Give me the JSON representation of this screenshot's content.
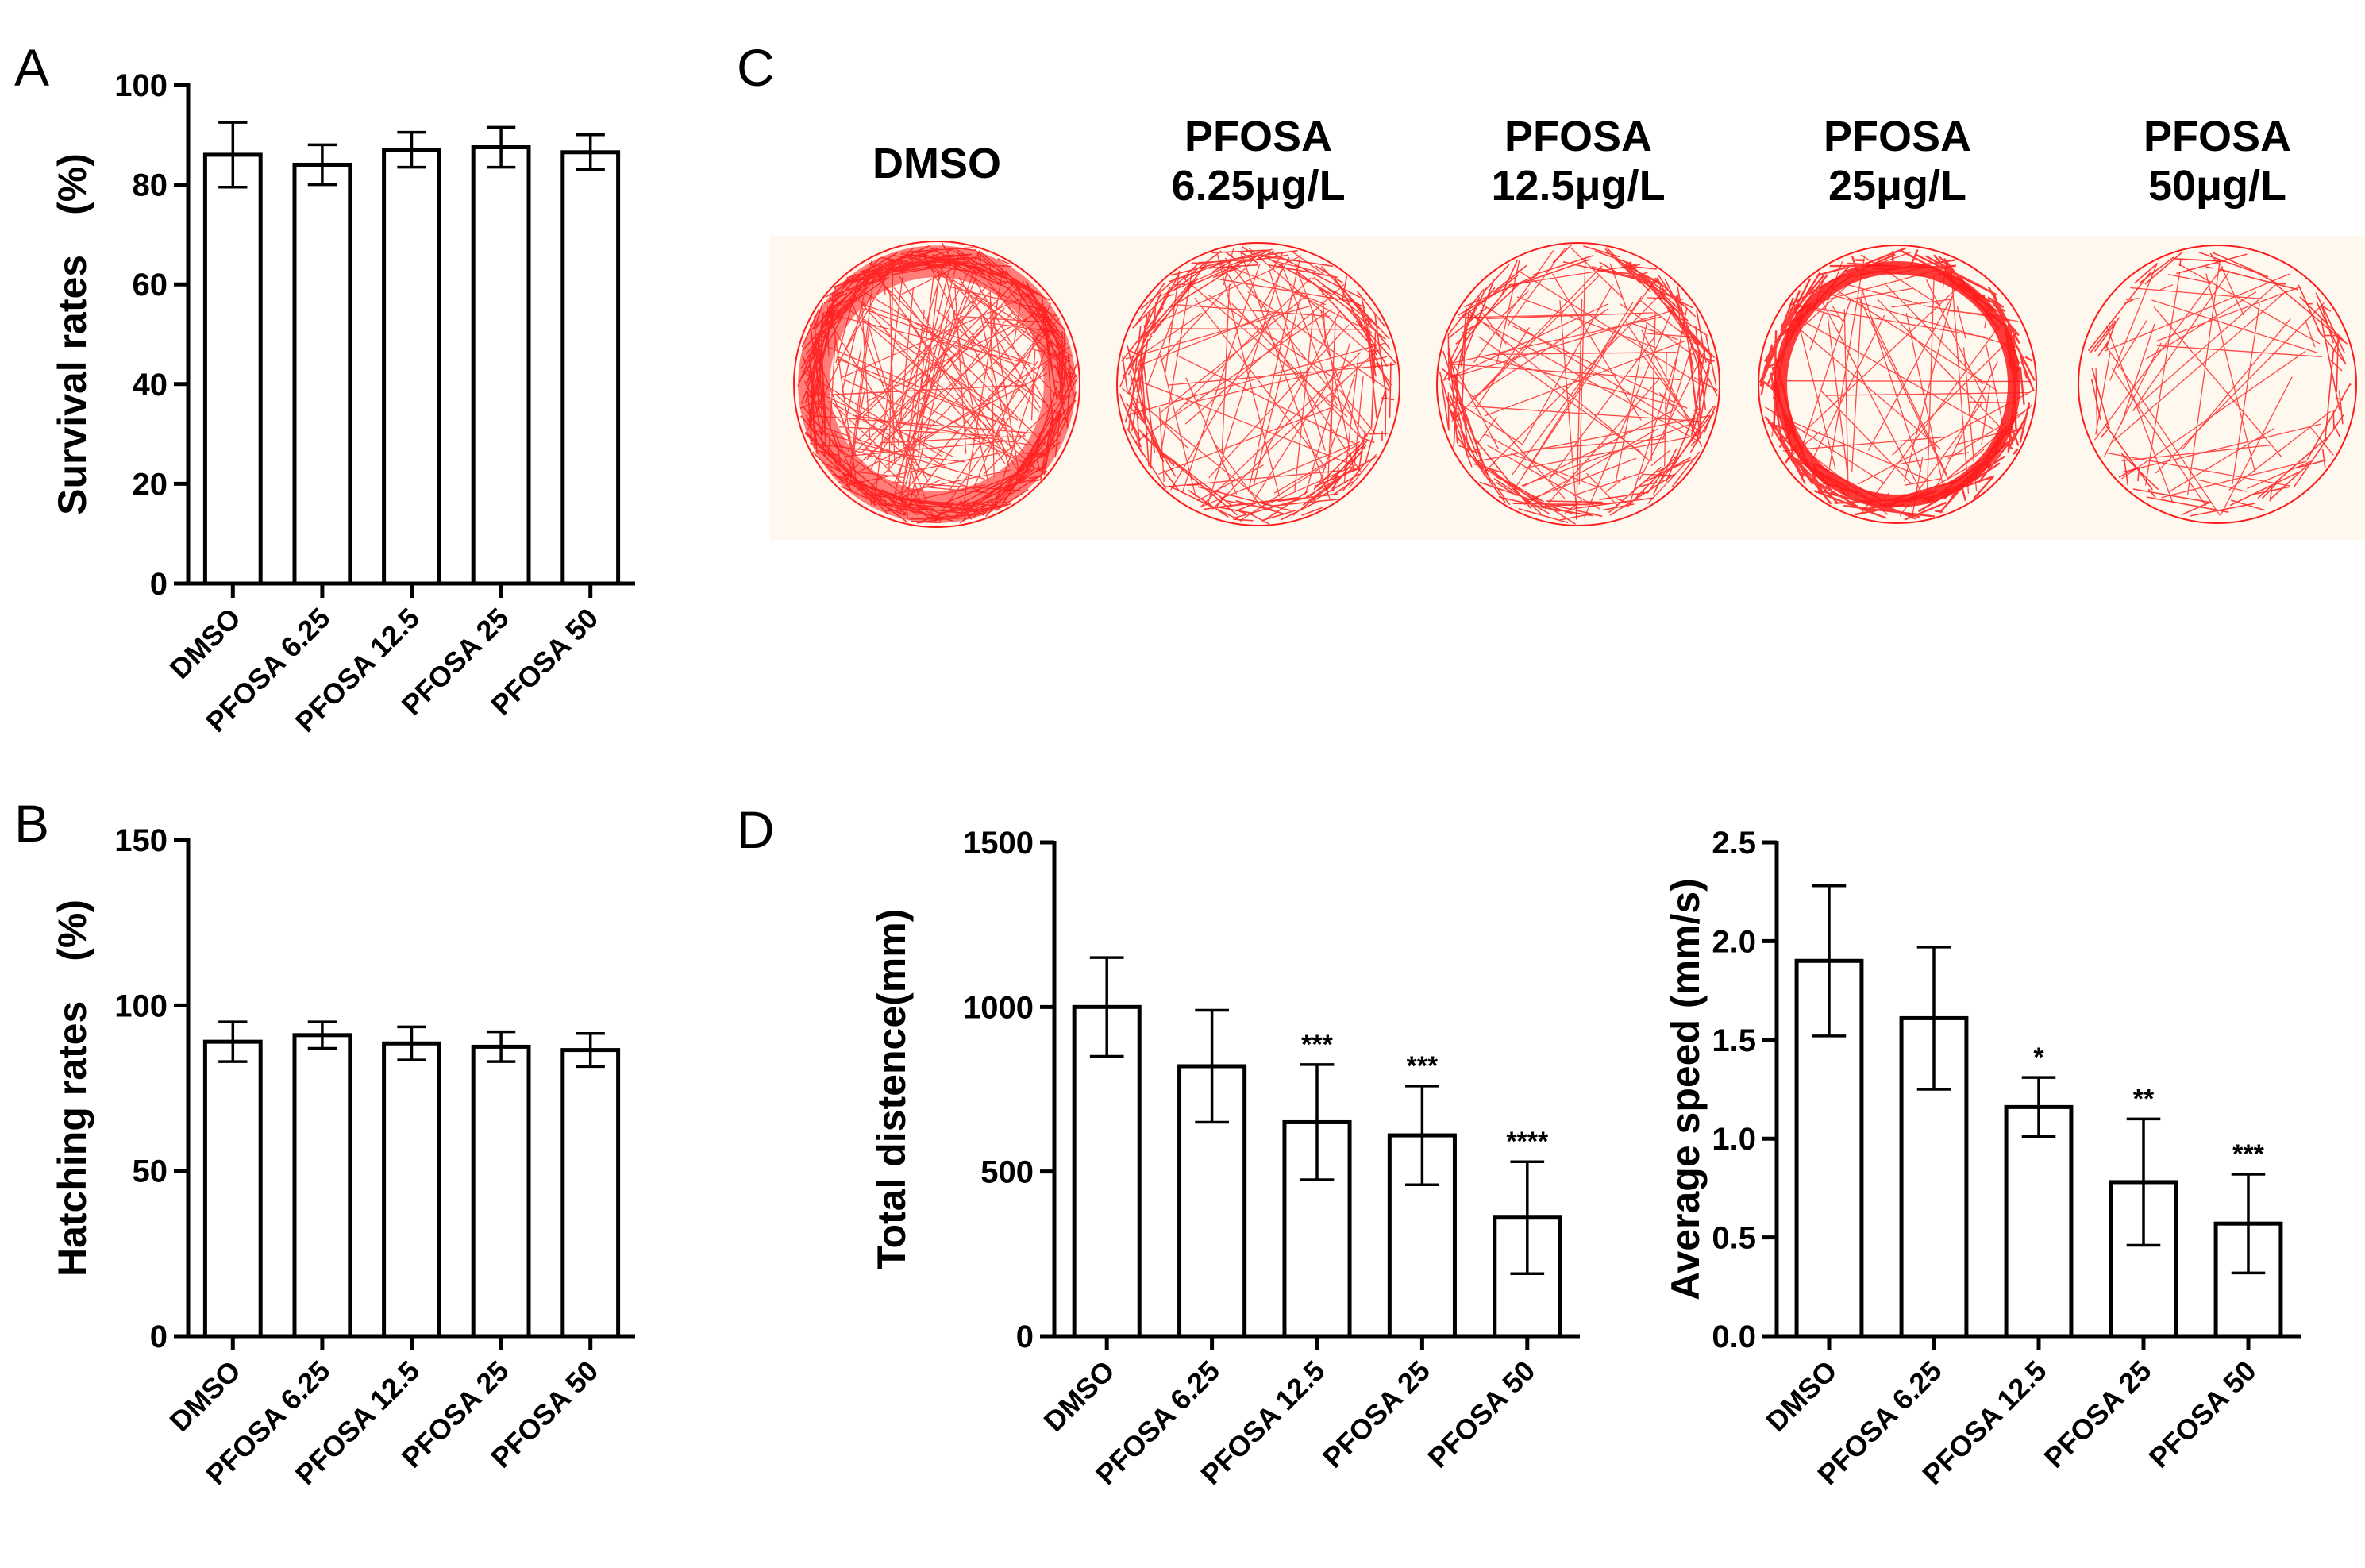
{
  "panels": {
    "A": "A",
    "B": "B",
    "C": "C",
    "D": "D"
  },
  "tracks": {
    "labels": [
      [
        "DMSO"
      ],
      [
        "PFOSA",
        "6.25μg/L"
      ],
      [
        "PFOSA",
        "12.5μg/L"
      ],
      [
        "PFOSA",
        "25μg/L"
      ],
      [
        "PFOSA",
        "50μg/L"
      ]
    ],
    "trace_color": "#ff1a1a",
    "background_color": "#fff8ee",
    "density": [
      1.0,
      0.55,
      0.55,
      0.5,
      0.25
    ]
  },
  "chart_data": [
    {
      "id": "survival",
      "type": "bar",
      "categories": [
        "DMSO",
        "PFOSA 6.25",
        "PFOSA 12.5",
        "PFOSA 25",
        "PFOSA 50"
      ],
      "values": [
        86,
        84,
        87,
        87.5,
        86.5
      ],
      "errors": [
        6.5,
        4,
        3.5,
        4,
        3.5
      ],
      "ylabel": "Survival rates　(%)",
      "ylim": [
        0,
        100
      ],
      "yticks": [
        0,
        20,
        40,
        60,
        80,
        100
      ],
      "yticklabels": [
        "0",
        "20",
        "40",
        "60",
        "80",
        "100"
      ],
      "annotations": [
        "",
        "",
        "",
        "",
        ""
      ]
    },
    {
      "id": "hatching",
      "type": "bar",
      "categories": [
        "DMSO",
        "PFOSA 6.25",
        "PFOSA 12.5",
        "PFOSA 25",
        "PFOSA 50"
      ],
      "values": [
        89,
        91,
        88.5,
        87.5,
        86.5
      ],
      "errors": [
        6,
        4,
        5,
        4.5,
        5
      ],
      "ylabel": "Hatching rates　(%)",
      "ylim": [
        0,
        150
      ],
      "yticks": [
        0,
        50,
        100,
        150
      ],
      "yticklabels": [
        "0",
        "50",
        "100",
        "150"
      ],
      "annotations": [
        "",
        "",
        "",
        "",
        ""
      ]
    },
    {
      "id": "distance",
      "type": "bar",
      "categories": [
        "DMSO",
        "PFOSA 6.25",
        "PFOSA 12.5",
        "PFOSA 25",
        "PFOSA 50"
      ],
      "values": [
        1000,
        820,
        650,
        610,
        360
      ],
      "errors": [
        150,
        170,
        175,
        150,
        170
      ],
      "ylabel": "Total distence(mm)",
      "ylim": [
        0,
        1500
      ],
      "yticks": [
        0,
        500,
        1000,
        1500
      ],
      "yticklabels": [
        "0",
        "500",
        "1000",
        "1500"
      ],
      "annotations": [
        "",
        "",
        "***",
        "***",
        "****"
      ]
    },
    {
      "id": "speed",
      "type": "bar",
      "categories": [
        "DMSO",
        "PFOSA 6.25",
        "PFOSA 12.5",
        "PFOSA 25",
        "PFOSA 50"
      ],
      "values": [
        1.9,
        1.61,
        1.16,
        0.78,
        0.57
      ],
      "errors": [
        0.38,
        0.36,
        0.15,
        0.32,
        0.25
      ],
      "ylabel": "Average speed (mm/s)",
      "ylim": [
        0,
        2.5
      ],
      "yticks": [
        0,
        0.5,
        1.0,
        1.5,
        2.0,
        2.5
      ],
      "yticklabels": [
        "0.0",
        "0.5",
        "1.0",
        "1.5",
        "2.0",
        "2.5"
      ],
      "annotations": [
        "",
        "",
        "*",
        "**",
        "***"
      ]
    }
  ]
}
